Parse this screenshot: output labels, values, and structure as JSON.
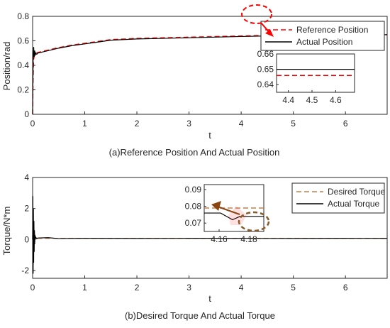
{
  "chart_data": [
    {
      "type": "line",
      "caption": "(a)Reference Position And Actual Position",
      "xlabel": "t",
      "ylabel": "Position/rad",
      "xlim": [
        0,
        6.8
      ],
      "ylim": [
        0,
        0.8
      ],
      "xticks": [
        "0",
        "1",
        "2",
        "3",
        "4",
        "5",
        "6"
      ],
      "yticks": [
        "0",
        "0.2",
        "0.4",
        "0.6",
        "0.8"
      ],
      "grid": false,
      "legend_position": "top-right",
      "series": [
        {
          "name": "Reference Position",
          "style": "dashed",
          "color": "#ff0000",
          "x": [
            0,
            0.01,
            0.02,
            0.04,
            0.06,
            0.1,
            0.2,
            0.3,
            0.5,
            0.75,
            1.0,
            1.25,
            1.5,
            2.0,
            2.5,
            3.0,
            3.5,
            4.0,
            4.5,
            5.0,
            5.5,
            6.0,
            6.5,
            6.8
          ],
          "y": [
            0.0,
            0.3,
            0.45,
            0.49,
            0.5,
            0.505,
            0.515,
            0.525,
            0.545,
            0.565,
            0.58,
            0.595,
            0.61,
            0.62,
            0.625,
            0.63,
            0.635,
            0.64,
            0.645,
            0.645,
            0.647,
            0.648,
            0.65,
            0.65
          ]
        },
        {
          "name": "Actual Position",
          "style": "solid",
          "color": "#000000",
          "x": [
            0,
            0.01,
            0.02,
            0.03,
            0.04,
            0.05,
            0.06,
            0.08,
            0.1,
            0.2,
            0.3,
            0.5,
            0.75,
            1.0,
            1.25,
            1.5,
            2.0,
            2.5,
            3.0,
            3.5,
            4.0,
            4.5,
            5.0,
            5.5,
            6.0,
            6.5,
            6.8
          ],
          "y": [
            0.0,
            0.45,
            0.55,
            0.47,
            0.52,
            0.48,
            0.5,
            0.49,
            0.5,
            0.51,
            0.52,
            0.54,
            0.56,
            0.575,
            0.59,
            0.605,
            0.615,
            0.62,
            0.625,
            0.63,
            0.635,
            0.64,
            0.642,
            0.645,
            0.647,
            0.649,
            0.65
          ]
        }
      ],
      "inset": {
        "xlim": [
          4.35,
          4.68
        ],
        "ylim": [
          0.635,
          0.66
        ],
        "xticks": [
          "4.4",
          "4.5",
          "4.6"
        ],
        "yticks": [
          "0.66",
          "0.65",
          "0.64"
        ],
        "series": [
          {
            "name": "Reference Position",
            "style": "dashed",
            "color": "#ff0000",
            "x": [
              4.35,
              4.68
            ],
            "y": [
              0.646,
              0.646
            ]
          },
          {
            "name": "Actual Position",
            "style": "solid",
            "color": "#000000",
            "x": [
              4.35,
              4.68
            ],
            "y": [
              0.65,
              0.65
            ]
          }
        ]
      }
    },
    {
      "type": "line",
      "caption": "(b)Desired Torque And Actual Torque",
      "xlabel": "t",
      "ylabel": "Torque/N*m",
      "xlim": [
        0,
        6.8
      ],
      "ylim": [
        -2.5,
        4
      ],
      "xticks": [
        "0",
        "1",
        "2",
        "3",
        "4",
        "5",
        "6"
      ],
      "yticks": [
        "-2",
        "0",
        "2",
        "4"
      ],
      "grid": false,
      "legend_position": "top-right",
      "series": [
        {
          "name": "Desired Torque",
          "style": "dashed",
          "color": "#c0804d",
          "x": [
            0,
            0.01,
            0.02,
            0.03,
            0.05,
            0.1,
            1.0,
            3.0,
            5.0,
            6.8
          ],
          "y": [
            0.0,
            1.5,
            -0.5,
            0.5,
            0.1,
            0.08,
            0.08,
            0.08,
            0.08,
            0.08
          ]
        },
        {
          "name": "Actual Torque",
          "style": "solid",
          "color": "#000000",
          "x": [
            0,
            0.005,
            0.01,
            0.015,
            0.02,
            0.025,
            0.03,
            0.035,
            0.04,
            0.045,
            0.05,
            0.06,
            0.08,
            0.1,
            0.3,
            0.5,
            1.0,
            2.0,
            3.0,
            4.0,
            5.0,
            6.0,
            6.8
          ],
          "y": [
            0.0,
            2.8,
            -2.2,
            2.0,
            -1.5,
            1.2,
            -0.8,
            0.6,
            -0.3,
            0.3,
            0.0,
            0.15,
            0.05,
            0.1,
            0.12,
            0.06,
            0.08,
            0.07,
            0.08,
            0.075,
            0.07,
            0.08,
            0.075
          ]
        }
      ],
      "inset": {
        "xlim": [
          4.15,
          4.19
        ],
        "ylim": [
          0.065,
          0.093
        ],
        "xticks": [
          "4.16",
          "4.18"
        ],
        "yticks": [
          "0.09",
          "0.08",
          "0.07"
        ],
        "series": [
          {
            "name": "Desired Torque",
            "style": "dashed",
            "color": "#c0804d",
            "x": [
              4.15,
              4.19
            ],
            "y": [
              0.079,
              0.079
            ]
          },
          {
            "name": "Actual Torque",
            "style": "solid",
            "color": "#000000",
            "x": [
              4.15,
              4.161,
              4.169,
              4.174,
              4.19
            ],
            "y": [
              0.076,
              0.076,
              0.072,
              0.074,
              0.074
            ]
          }
        ]
      }
    }
  ]
}
